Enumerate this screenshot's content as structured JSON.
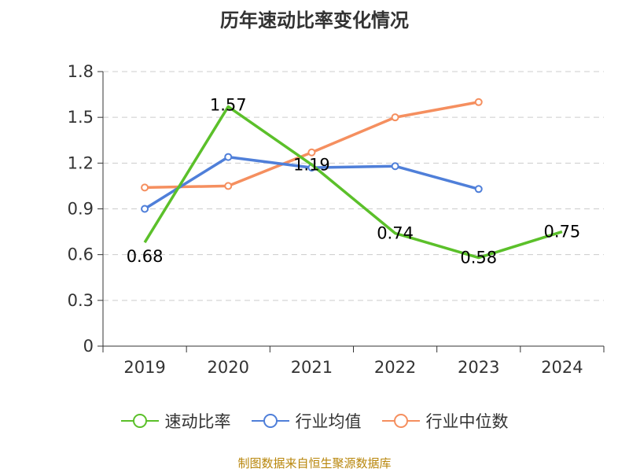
{
  "chart_data": {
    "type": "line",
    "title": "历年速动比率变化情况",
    "categories": [
      "2019",
      "2020",
      "2021",
      "2022",
      "2023",
      "2024"
    ],
    "ylim": [
      0,
      1.8
    ],
    "yticks": [
      "0",
      "0.3",
      "0.6",
      "0.9",
      "1.2",
      "1.5",
      "1.8"
    ],
    "grid": true,
    "legend_position": "bottom",
    "series": [
      {
        "name": "速动比率",
        "color": "#5bc02a",
        "values": [
          0.68,
          1.57,
          1.19,
          0.74,
          0.58,
          0.75
        ],
        "labels": [
          "0.68",
          "1.57",
          "1.19",
          "0.74",
          "0.58",
          "0.75"
        ]
      },
      {
        "name": "行业均值",
        "color": "#4f7fd9",
        "values": [
          0.9,
          1.24,
          1.17,
          1.18,
          1.03,
          null
        ]
      },
      {
        "name": "行业中位数",
        "color": "#f58f5f",
        "values": [
          1.04,
          1.05,
          1.27,
          1.5,
          1.6,
          null
        ]
      }
    ]
  },
  "source_text": "制图数据来自恒生聚源数据库"
}
